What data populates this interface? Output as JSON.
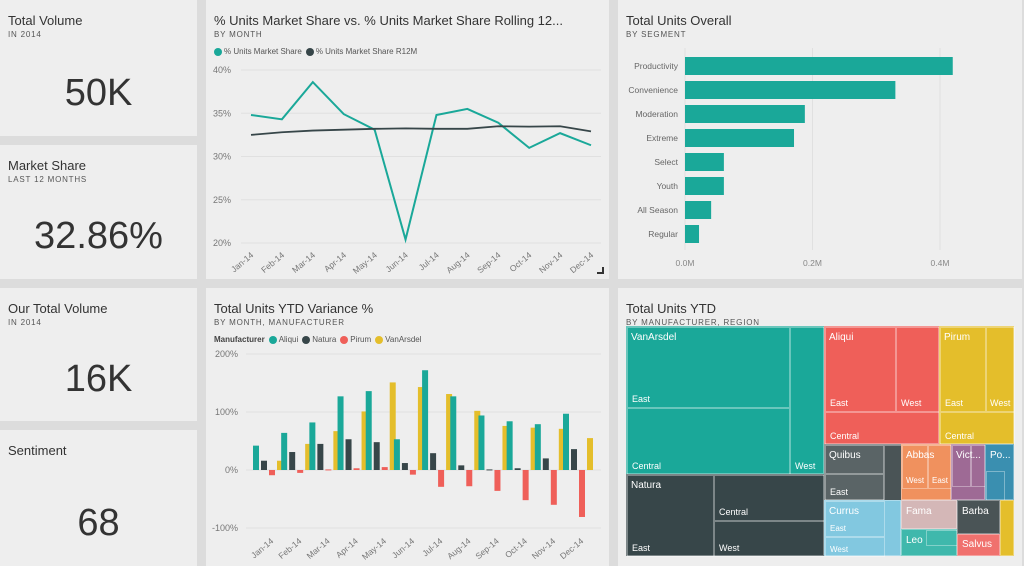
{
  "colors": {
    "teal": "#1aa899",
    "dark": "#374649",
    "red": "#ef5f59",
    "yellow": "#e4be2b",
    "grey": "#5a6466",
    "lightblue": "#82c8e0",
    "orange": "#f0915e",
    "purple": "#9e6a95",
    "blue": "#3a8fb0",
    "pink": "#d4b7b7",
    "leo": "#3fb8ac",
    "salvus": "#f0716e"
  },
  "kpis": [
    {
      "title": "Total Volume",
      "subtitle": "IN 2014",
      "value": "50K"
    },
    {
      "title": "Market Share",
      "subtitle": "LAST 12 MONTHS",
      "value": "32.86%"
    },
    {
      "title": "Our Total Volume",
      "subtitle": "IN 2014",
      "value": "16K"
    },
    {
      "title": "Sentiment",
      "subtitle": "",
      "value": "68"
    }
  ],
  "chart_data": [
    {
      "type": "line",
      "title": "% Units Market Share vs. % Units Market Share Rolling 12...",
      "subtitle": "BY MONTH",
      "categories": [
        "Jan-14",
        "Feb-14",
        "Mar-14",
        "Apr-14",
        "May-14",
        "Jun-14",
        "Jul-14",
        "Aug-14",
        "Sep-14",
        "Oct-14",
        "Nov-14",
        "Dec-14"
      ],
      "series": [
        {
          "name": "% Units Market Share",
          "color": "#1aa899",
          "values": [
            34.8,
            34.3,
            38.6,
            34.9,
            33.1,
            20.4,
            34.8,
            35.5,
            33.9,
            31.0,
            32.7,
            31.3
          ]
        },
        {
          "name": "% Units Market Share R12M",
          "color": "#374649",
          "values": [
            32.5,
            32.8,
            33.0,
            33.1,
            33.2,
            33.25,
            33.2,
            33.2,
            33.5,
            33.45,
            33.5,
            32.9
          ]
        }
      ],
      "yticks": [
        "20%",
        "25%",
        "30%",
        "35%",
        "40%"
      ],
      "ylim": [
        20,
        40
      ],
      "grid": true,
      "legend": "top-left"
    },
    {
      "type": "bar",
      "orientation": "horizontal",
      "title": "Total Units Overall",
      "subtitle": "BY SEGMENT",
      "categories": [
        "Productivity",
        "Convenience",
        "Moderation",
        "Extreme",
        "Select",
        "Youth",
        "All Season",
        "Regular"
      ],
      "values": [
        0.42,
        0.33,
        0.188,
        0.171,
        0.061,
        0.061,
        0.041,
        0.022
      ],
      "unit": "M",
      "xticks": [
        "0.0M",
        "0.2M",
        "0.4M"
      ],
      "xlim": [
        0,
        0.4
      ],
      "grid": true,
      "color": "#1aa899"
    },
    {
      "type": "bar",
      "title": "Total Units YTD Variance %",
      "subtitle": "BY MONTH, MANUFACTURER",
      "legend_title": "Manufacturer",
      "categories": [
        "Jan-14",
        "Feb-14",
        "Mar-14",
        "Apr-14",
        "May-14",
        "Jun-14",
        "Jul-14",
        "Aug-14",
        "Sep-14",
        "Oct-14",
        "Nov-14",
        "Dec-14"
      ],
      "series": [
        {
          "name": "Aliqui",
          "color": "#1aa899",
          "values": [
            42,
            64,
            82,
            127,
            136,
            53,
            172,
            127,
            94,
            84,
            79,
            97
          ]
        },
        {
          "name": "Natura",
          "color": "#374649",
          "values": [
            16,
            31,
            45,
            53,
            48,
            12,
            29,
            8,
            1,
            3,
            20,
            36
          ]
        },
        {
          "name": "Pirum",
          "color": "#ef5f59",
          "values": [
            -9,
            -5,
            1,
            3,
            5,
            -8,
            -29,
            -28,
            -36,
            -52,
            -60,
            -81
          ]
        },
        {
          "name": "VanArsdel",
          "color": "#e4be2b",
          "values": [
            16,
            45,
            67,
            101,
            151,
            143,
            131,
            102,
            76,
            73,
            71,
            55
          ]
        }
      ],
      "yticks": [
        "-100%",
        "0%",
        "100%",
        "200%"
      ],
      "ylim": [
        -100,
        200
      ],
      "grid": true,
      "legend": "top-left"
    }
  ],
  "treemap": {
    "title": "Total Units YTD",
    "subtitle": "BY MANUFACTURER, REGION",
    "labels": {
      "vanarsdel": "VanArsdel",
      "aliqui": "Aliqui",
      "pirum": "Pirum",
      "natura": "Natura",
      "quibus": "Quibus",
      "abbas": "Abbas",
      "vict": "Vict...",
      "po": "Po...",
      "currus": "Currus",
      "fama": "Fama",
      "barba": "Barba",
      "leo": "Leo",
      "salvus": "Salvus",
      "east": "East",
      "west": "West",
      "central": "Central"
    }
  }
}
